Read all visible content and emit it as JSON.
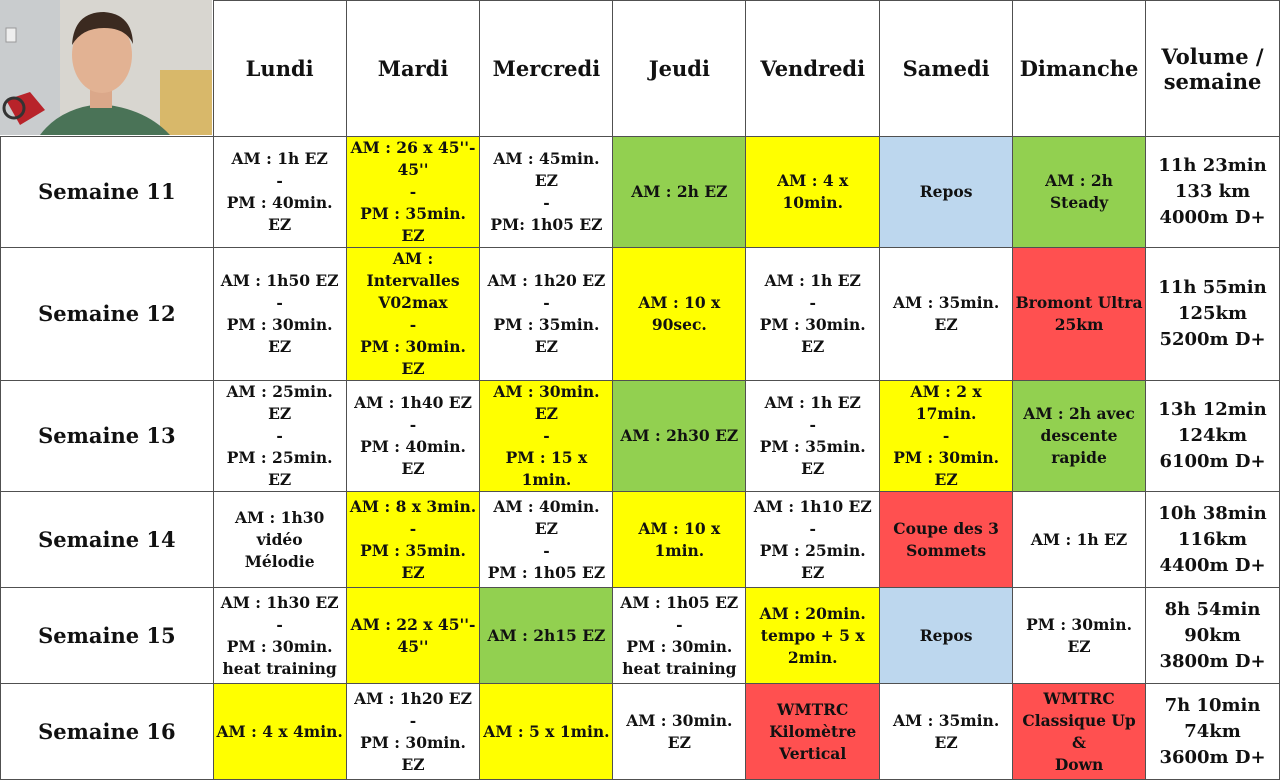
{
  "header": {
    "days": [
      "Lundi",
      "Mardi",
      "Mercredi",
      "Jeudi",
      "Vendredi",
      "Samedi",
      "Dimanche"
    ],
    "volume_label": "Volume /\nsemaine"
  },
  "colors": {
    "yellow": "#ffff00",
    "green": "#92d050",
    "blue": "#bdd7ee",
    "red": "#ff5050",
    "white": "#ffffff"
  },
  "rows": [
    {
      "week": "Semaine 11",
      "cells": [
        {
          "text": "AM : 1h EZ\n-\nPM : 40min. EZ",
          "color": "white"
        },
        {
          "text": "AM : 26 x 45''-\n45''\n-\nPM : 35min. EZ",
          "color": "yellow"
        },
        {
          "text": "AM : 45min. EZ\n-\nPM: 1h05 EZ",
          "color": "white"
        },
        {
          "text": "AM : 2h EZ",
          "color": "green"
        },
        {
          "text": "AM : 4 x 10min.",
          "color": "yellow"
        },
        {
          "text": "Repos",
          "color": "blue"
        },
        {
          "text": "AM : 2h Steady",
          "color": "green"
        }
      ],
      "volume": "11h 23min\n133 km\n4000m D+"
    },
    {
      "week": "Semaine 12",
      "cells": [
        {
          "text": "AM : 1h50 EZ\n-\nPM : 30min. EZ",
          "color": "white"
        },
        {
          "text": "AM : Intervalles\nV02max\n-\nPM : 30min. EZ",
          "color": "yellow"
        },
        {
          "text": "AM : 1h20 EZ\n-\nPM : 35min. EZ",
          "color": "white"
        },
        {
          "text": "AM : 10 x 90sec.",
          "color": "yellow"
        },
        {
          "text": "AM : 1h EZ\n-\nPM : 30min. EZ",
          "color": "white"
        },
        {
          "text": "AM : 35min. EZ",
          "color": "white"
        },
        {
          "text": "Bromont Ultra\n25km",
          "color": "red"
        }
      ],
      "volume": "11h 55min\n125km\n5200m D+"
    },
    {
      "week": "Semaine 13",
      "cells": [
        {
          "text": "AM : 25min. EZ\n-\nPM : 25min. EZ",
          "color": "white"
        },
        {
          "text": "AM : 1h40 EZ\n-\nPM : 40min. EZ",
          "color": "white"
        },
        {
          "text": "AM : 30min. EZ\n-\nPM : 15 x 1min.",
          "color": "yellow"
        },
        {
          "text": "AM : 2h30 EZ",
          "color": "green"
        },
        {
          "text": "AM : 1h EZ\n-\nPM : 35min. EZ",
          "color": "white"
        },
        {
          "text": "AM : 2 x 17min.\n-\nPM : 30min. EZ",
          "color": "yellow"
        },
        {
          "text": "AM : 2h avec\ndescente rapide",
          "color": "green"
        }
      ],
      "volume": "13h 12min\n124km\n6100m D+"
    },
    {
      "week": "Semaine 14",
      "cells": [
        {
          "text": "AM : 1h30 vidéo\nMélodie",
          "color": "white"
        },
        {
          "text": "AM : 8 x 3min.\n-\nPM : 35min. EZ",
          "color": "yellow"
        },
        {
          "text": "AM : 40min. EZ\n-\nPM : 1h05 EZ",
          "color": "white"
        },
        {
          "text": "AM : 10 x 1min.",
          "color": "yellow"
        },
        {
          "text": "AM : 1h10 EZ\n-\nPM : 25min. EZ",
          "color": "white"
        },
        {
          "text": "Coupe des 3\nSommets",
          "color": "red"
        },
        {
          "text": "AM : 1h EZ",
          "color": "white"
        }
      ],
      "volume": "10h 38min\n116km\n4400m D+"
    },
    {
      "week": "Semaine 15",
      "cells": [
        {
          "text": "AM : 1h30 EZ\n-\nPM : 30min.\nheat training",
          "color": "white"
        },
        {
          "text": "AM : 22 x 45''-\n45''",
          "color": "yellow"
        },
        {
          "text": "AM : 2h15 EZ",
          "color": "green"
        },
        {
          "text": "AM : 1h05 EZ\n-\nPM : 30min.\nheat training",
          "color": "white"
        },
        {
          "text": "AM : 20min.\ntempo + 5 x\n2min.",
          "color": "yellow"
        },
        {
          "text": "Repos",
          "color": "blue"
        },
        {
          "text": "PM : 30min. EZ",
          "color": "white"
        }
      ],
      "volume": "8h 54min\n90km\n3800m D+"
    },
    {
      "week": "Semaine 16",
      "cells": [
        {
          "text": "AM : 4 x 4min.",
          "color": "yellow"
        },
        {
          "text": "AM : 1h20 EZ\n-\nPM : 30min. EZ",
          "color": "white"
        },
        {
          "text": "AM : 5 x 1min.",
          "color": "yellow"
        },
        {
          "text": "AM : 30min. EZ",
          "color": "white"
        },
        {
          "text": "WMTRC\nKilomètre\nVertical",
          "color": "red"
        },
        {
          "text": "AM : 35min. EZ",
          "color": "white"
        },
        {
          "text": "WMTRC\nClassique Up &\nDown",
          "color": "red"
        }
      ],
      "volume": "7h 10min\n74km\n3600m D+"
    }
  ]
}
